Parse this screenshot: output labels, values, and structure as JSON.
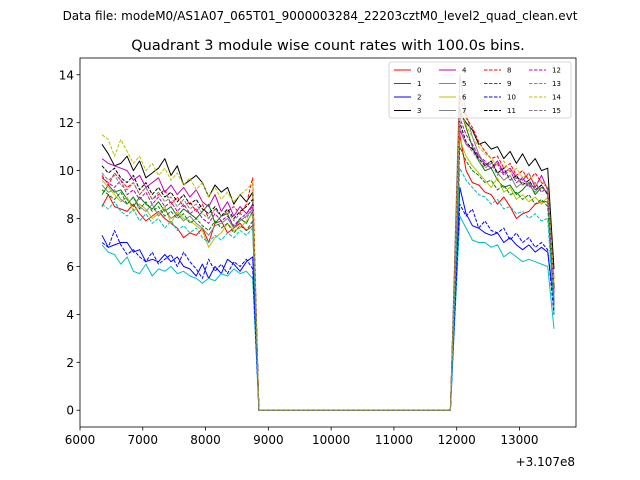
{
  "suptitle": "Data file: modeM0/AS1A07_065T01_9000003284_22203cztM0_level2_quad_clean.evt",
  "chart_data": {
    "type": "line",
    "title": "Quadrant 3 module wise count rates with 100.0s bins.",
    "xlabel": "",
    "ylabel": "",
    "x_offset_label": "+3.107e8",
    "xlim": [
      6000,
      13900
    ],
    "ylim": [
      -0.7,
      14.7
    ],
    "xticks": [
      6000,
      7000,
      8000,
      9000,
      10000,
      11000,
      12000,
      13000
    ],
    "yticks": [
      0,
      2,
      4,
      6,
      8,
      10,
      12,
      14
    ],
    "legend_position": "upper-right",
    "gap": {
      "start": 8850,
      "end": 11900
    },
    "segment1": {
      "start": 6350,
      "end": 8750,
      "step": 100
    },
    "segment2": {
      "start": 12050,
      "end": 13550,
      "step": 100
    },
    "series": [
      {
        "name": "0",
        "color": "#ff0000",
        "dash": "solid",
        "seg1": [
          8.5,
          9.0,
          8.5,
          8.4,
          8.3,
          8.6,
          8.2,
          7.9,
          8.1,
          8.3,
          8.0,
          7.8,
          7.6,
          7.2,
          7.4,
          7.3,
          7.6,
          7.0,
          7.8,
          7.9,
          7.4,
          7.6,
          7.8,
          7.5,
          7.7
        ],
        "seg2": [
          11.5,
          10.0,
          9.5,
          9.4,
          9.1,
          9.0,
          8.6,
          8.9,
          8.5,
          8.0,
          8.2,
          8.3,
          8.6,
          8.7,
          8.7,
          5.5
        ]
      },
      {
        "name": "1",
        "color": "#008000",
        "dash": "solid",
        "seg1": [
          9.0,
          9.4,
          9.1,
          9.2,
          8.8,
          8.5,
          8.9,
          8.6,
          8.4,
          8.7,
          8.3,
          8.5,
          8.1,
          8.4,
          8.2,
          8.0,
          8.3,
          8.6,
          7.8,
          8.1,
          8.2,
          7.6,
          8.0,
          7.8,
          8.3
        ],
        "seg2": [
          12.6,
          11.8,
          11.0,
          10.4,
          10.0,
          10.1,
          9.6,
          9.3,
          9.4,
          9.0,
          9.2,
          9.5,
          9.0,
          9.3,
          9.1,
          4.2
        ]
      },
      {
        "name": "2",
        "color": "#0000ff",
        "dash": "solid",
        "seg1": [
          7.3,
          6.8,
          6.9,
          7.0,
          7.0,
          6.6,
          6.7,
          6.2,
          6.3,
          6.2,
          6.5,
          6.2,
          6.4,
          6.0,
          5.9,
          5.6,
          6.1,
          5.5,
          6.0,
          5.7,
          6.3,
          6.1,
          5.8,
          6.2,
          6.4
        ],
        "seg2": [
          9.3,
          8.2,
          7.7,
          7.6,
          7.4,
          7.3,
          7.4,
          7.0,
          7.2,
          6.9,
          6.7,
          6.9,
          6.6,
          6.8,
          6.6,
          4.5
        ]
      },
      {
        "name": "3",
        "color": "#000000",
        "dash": "solid",
        "seg1": [
          11.1,
          10.7,
          10.2,
          10.3,
          10.6,
          10.0,
          10.4,
          9.7,
          9.9,
          10.1,
          10.5,
          9.8,
          10.2,
          9.4,
          9.6,
          9.8,
          9.5,
          8.9,
          9.4,
          9.1,
          9.3,
          8.6,
          9.0,
          8.7,
          9.1
        ],
        "seg2": [
          12.4,
          12.0,
          11.7,
          11.1,
          11.2,
          10.9,
          11.0,
          10.5,
          10.8,
          10.3,
          10.7,
          10.2,
          10.5,
          10.0,
          10.1,
          5.9
        ]
      },
      {
        "name": "4",
        "color": "#bf00bf",
        "dash": "solid",
        "seg1": [
          10.5,
          10.3,
          10.2,
          10.1,
          10.0,
          9.6,
          9.8,
          9.3,
          9.5,
          9.7,
          9.1,
          9.4,
          9.0,
          9.3,
          8.9,
          9.2,
          8.7,
          8.5,
          9.0,
          8.3,
          8.7,
          8.1,
          8.5,
          8.2,
          8.6
        ],
        "seg2": [
          11.7,
          11.1,
          10.9,
          10.6,
          10.3,
          10.1,
          10.4,
          9.9,
          10.1,
          9.7,
          9.6,
          9.9,
          9.3,
          9.8,
          9.2,
          5.0
        ]
      },
      {
        "name": "5",
        "color": "#00bfbf",
        "dash": "solid",
        "seg1": [
          6.9,
          6.6,
          6.5,
          6.1,
          6.4,
          5.8,
          5.7,
          6.1,
          5.6,
          5.9,
          5.8,
          6.0,
          5.7,
          5.8,
          5.6,
          5.5,
          5.3,
          5.5,
          5.4,
          5.7,
          5.6,
          5.9,
          5.7,
          5.8,
          5.5
        ],
        "seg2": [
          8.1,
          7.6,
          7.1,
          7.0,
          7.0,
          6.8,
          6.9,
          6.4,
          6.6,
          6.4,
          6.2,
          6.3,
          6.2,
          6.1,
          6.0,
          3.4
        ]
      },
      {
        "name": "6",
        "color": "#bfbf00",
        "dash": "solid",
        "seg1": [
          9.6,
          9.3,
          9.0,
          8.7,
          8.9,
          8.3,
          8.6,
          8.4,
          8.0,
          8.2,
          8.5,
          7.8,
          8.3,
          8.0,
          7.9,
          7.7,
          7.5,
          6.8,
          7.2,
          7.4,
          7.8,
          7.5,
          7.6,
          7.9,
          8.2
        ],
        "seg2": [
          11.3,
          10.6,
          10.2,
          9.9,
          9.6,
          9.3,
          9.7,
          9.1,
          9.3,
          8.8,
          9.0,
          8.7,
          8.9,
          8.6,
          8.9,
          4.8
        ]
      },
      {
        "name": "7",
        "color": "#808080",
        "dash": "solid",
        "seg1": [
          9.4,
          9.1,
          9.2,
          8.8,
          8.6,
          8.9,
          8.5,
          8.3,
          8.6,
          8.1,
          8.4,
          8.0,
          8.2,
          7.9,
          8.1,
          7.8,
          7.6,
          7.3,
          7.7,
          7.8,
          8.0,
          7.6,
          7.9,
          8.1,
          8.4
        ],
        "seg2": [
          14.0,
          12.4,
          11.4,
          10.7,
          10.2,
          10.4,
          9.9,
          9.6,
          9.8,
          9.3,
          9.5,
          9.4,
          9.1,
          9.4,
          9.0,
          4.6
        ]
      },
      {
        "name": "8",
        "color": "#ff0000",
        "dash": "dashed",
        "seg1": [
          9.8,
          9.4,
          9.9,
          9.6,
          9.3,
          9.5,
          9.0,
          9.3,
          8.8,
          9.0,
          9.2,
          8.6,
          8.9,
          8.5,
          8.7,
          8.3,
          8.6,
          8.0,
          8.4,
          8.1,
          8.3,
          8.5,
          8.2,
          8.6,
          9.7
        ],
        "seg2": [
          13.1,
          12.2,
          11.8,
          11.2,
          10.8,
          10.5,
          10.6,
          10.1,
          10.3,
          9.8,
          10.0,
          9.6,
          9.9,
          9.5,
          9.3,
          5.2
        ]
      },
      {
        "name": "9",
        "color": "#008000",
        "dash": "dashed",
        "seg1": [
          9.2,
          9.0,
          8.8,
          9.1,
          8.6,
          8.9,
          8.4,
          8.7,
          8.3,
          8.5,
          8.1,
          8.3,
          8.0,
          8.2,
          7.8,
          8.0,
          7.7,
          7.5,
          7.9,
          7.6,
          7.8,
          7.4,
          7.7,
          7.5,
          7.9
        ],
        "seg2": [
          11.0,
          10.4,
          10.0,
          9.8,
          9.5,
          9.6,
          9.2,
          9.4,
          9.0,
          9.1,
          8.8,
          9.0,
          8.6,
          8.8,
          8.5,
          4.4
        ]
      },
      {
        "name": "10",
        "color": "#0000ff",
        "dash": "dashed",
        "seg1": [
          7.0,
          6.8,
          7.5,
          6.9,
          6.5,
          6.7,
          6.4,
          6.2,
          6.6,
          6.1,
          6.3,
          6.5,
          6.0,
          6.6,
          6.2,
          5.9,
          5.5,
          6.3,
          5.8,
          6.1,
          5.7,
          6.2,
          6.0,
          6.3,
          5.9
        ],
        "seg2": [
          8.6,
          8.1,
          8.4,
          7.6,
          7.9,
          7.5,
          7.4,
          7.6,
          7.1,
          7.4,
          7.0,
          7.2,
          6.8,
          7.0,
          6.7,
          4.0
        ]
      },
      {
        "name": "11",
        "color": "#000000",
        "dash": "dashed",
        "seg1": [
          10.2,
          9.9,
          10.1,
          9.7,
          9.5,
          9.8,
          9.2,
          9.5,
          9.0,
          9.3,
          8.9,
          9.1,
          8.7,
          9.0,
          8.6,
          8.8,
          8.4,
          8.2,
          8.5,
          8.1,
          8.4,
          8.0,
          8.3,
          8.5,
          8.8
        ],
        "seg2": [
          12.0,
          11.2,
          10.9,
          10.5,
          10.2,
          10.4,
          9.9,
          10.1,
          9.6,
          9.8,
          9.4,
          9.6,
          9.2,
          9.4,
          9.0,
          5.1
        ]
      },
      {
        "name": "12",
        "color": "#bf00bf",
        "dash": "dashed",
        "seg1": [
          9.7,
          9.5,
          9.3,
          9.6,
          9.0,
          9.2,
          8.8,
          9.1,
          8.6,
          8.9,
          8.5,
          8.7,
          8.3,
          8.6,
          8.2,
          8.4,
          8.0,
          7.8,
          8.2,
          7.9,
          8.1,
          7.7,
          8.0,
          8.2,
          8.5
        ],
        "seg2": [
          12.2,
          11.5,
          11.1,
          10.6,
          10.4,
          10.1,
          10.3,
          9.8,
          10.0,
          9.5,
          9.7,
          9.3,
          9.5,
          9.1,
          9.3,
          4.9
        ]
      },
      {
        "name": "13",
        "color": "#00bfbf",
        "dash": "dashed",
        "seg1": [
          8.6,
          8.4,
          8.7,
          8.3,
          8.1,
          8.4,
          7.9,
          8.2,
          7.8,
          8.0,
          7.6,
          7.9,
          7.5,
          7.7,
          7.4,
          7.6,
          7.2,
          7.0,
          7.3,
          7.1,
          7.4,
          7.2,
          7.5,
          7.3,
          7.6
        ],
        "seg2": [
          10.1,
          9.6,
          9.3,
          9.0,
          8.9,
          8.6,
          8.8,
          8.4,
          8.5,
          8.2,
          8.3,
          8.0,
          8.2,
          7.9,
          8.0,
          4.1
        ]
      },
      {
        "name": "14",
        "color": "#bfbf00",
        "dash": "dashed",
        "seg1": [
          11.5,
          11.3,
          10.6,
          11.3,
          10.8,
          10.3,
          10.6,
          10.0,
          10.3,
          9.8,
          10.1,
          9.6,
          9.9,
          9.4,
          9.7,
          9.2,
          9.5,
          8.9,
          9.3,
          8.8,
          9.1,
          8.7,
          9.0,
          9.2,
          9.5
        ],
        "seg2": [
          12.5,
          11.9,
          11.4,
          11.0,
          10.7,
          10.5,
          10.2,
          10.4,
          9.9,
          10.1,
          9.7,
          9.9,
          9.4,
          9.6,
          9.3,
          5.3
        ]
      },
      {
        "name": "15",
        "color": "#808080",
        "dash": "dashed",
        "seg1": [
          9.9,
          9.6,
          9.8,
          9.4,
          9.2,
          9.5,
          9.0,
          9.3,
          8.8,
          9.1,
          8.7,
          8.9,
          8.5,
          8.8,
          8.4,
          8.6,
          8.2,
          8.0,
          8.4,
          8.1,
          8.3,
          7.9,
          8.2,
          8.0,
          8.4
        ],
        "seg2": [
          11.8,
          11.1,
          10.8,
          10.4,
          10.1,
          10.3,
          9.8,
          10.0,
          9.6,
          9.7,
          9.4,
          9.5,
          9.2,
          9.3,
          9.1,
          4.7
        ]
      }
    ]
  }
}
